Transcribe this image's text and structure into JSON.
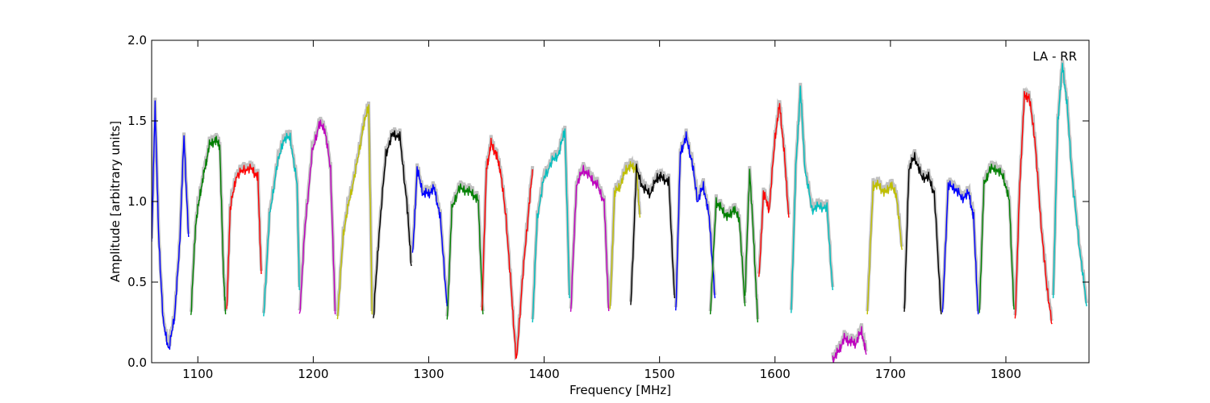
{
  "chart_data": {
    "type": "line",
    "xlabel": "Frequency [MHz]",
    "ylabel": "Amplitude [arbitrary units]",
    "annotation": "LA - RR",
    "xlim": [
      1060,
      1872
    ],
    "ylim": [
      0.0,
      2.0
    ],
    "xticks": [
      1100,
      1200,
      1300,
      1400,
      1500,
      1600,
      1700,
      1800
    ],
    "xtick_labels": [
      "1100",
      "1200",
      "1300",
      "1400",
      "1500",
      "1600",
      "1700",
      "1800"
    ],
    "yticks": [
      0.0,
      0.5,
      1.0,
      1.5,
      2.0
    ],
    "ytick_labels": [
      "0.0",
      "0.5",
      "1.0",
      "1.5",
      "2.0"
    ],
    "grid": false,
    "background_color": "#c0c0c0",
    "segments": [
      {
        "color": "#0000ff",
        "x": [
          1060,
          1063,
          1066,
          1070,
          1075,
          1080,
          1084,
          1088,
          1092
        ],
        "y": [
          0.75,
          1.6,
          0.8,
          0.25,
          0.08,
          0.3,
          0.7,
          1.4,
          0.78
        ]
      },
      {
        "color": "#008000",
        "x": [
          1094,
          1098,
          1102,
          1106,
          1110,
          1115,
          1119,
          1122,
          1124
        ],
        "y": [
          0.28,
          0.85,
          1.05,
          1.2,
          1.35,
          1.38,
          1.35,
          0.6,
          0.3
        ]
      },
      {
        "color": "#ff0000",
        "x": [
          1125,
          1128,
          1133,
          1140,
          1147,
          1152,
          1155
        ],
        "y": [
          0.3,
          0.95,
          1.15,
          1.2,
          1.2,
          1.15,
          0.55
        ]
      },
      {
        "color": "#00bfbf",
        "x": [
          1157,
          1162,
          1168,
          1174,
          1180,
          1186,
          1188
        ],
        "y": [
          0.28,
          0.9,
          1.2,
          1.38,
          1.4,
          1.1,
          0.45
        ]
      },
      {
        "color": "#bf00bf",
        "x": [
          1188,
          1193,
          1199,
          1205,
          1210,
          1215,
          1219
        ],
        "y": [
          0.28,
          0.85,
          1.3,
          1.48,
          1.45,
          1.2,
          0.3
        ]
      },
      {
        "color": "#bfbf00",
        "x": [
          1221,
          1226,
          1231,
          1237,
          1243,
          1248,
          1251
        ],
        "y": [
          0.27,
          0.8,
          1.0,
          1.2,
          1.45,
          1.6,
          0.3
        ]
      },
      {
        "color": "#000000",
        "x": [
          1252,
          1257,
          1263,
          1269,
          1275,
          1281,
          1285
        ],
        "y": [
          0.26,
          0.8,
          1.3,
          1.42,
          1.4,
          1.0,
          0.6
        ]
      },
      {
        "color": "#0000ff",
        "x": [
          1286,
          1290,
          1295,
          1300,
          1305,
          1310,
          1316
        ],
        "y": [
          0.65,
          1.2,
          1.05,
          1.05,
          1.08,
          0.9,
          0.35
        ]
      },
      {
        "color": "#008000",
        "x": [
          1316,
          1320,
          1326,
          1332,
          1338,
          1343,
          1347
        ],
        "y": [
          0.26,
          0.95,
          1.08,
          1.07,
          1.05,
          1.0,
          0.3
        ]
      },
      {
        "color": "#ff0000",
        "x": [
          1346,
          1350,
          1354,
          1358,
          1362,
          1367,
          1372,
          1376,
          1381,
          1386,
          1390
        ],
        "y": [
          0.3,
          1.2,
          1.36,
          1.3,
          1.2,
          0.9,
          0.4,
          0.0,
          0.5,
          0.9,
          1.2
        ]
      },
      {
        "color": "#00bfbf",
        "x": [
          1390,
          1394,
          1400,
          1407,
          1413,
          1418,
          1422
        ],
        "y": [
          0.25,
          0.9,
          1.15,
          1.25,
          1.3,
          1.45,
          0.4
        ]
      },
      {
        "color": "#bf00bf",
        "x": [
          1423,
          1428,
          1434,
          1440,
          1446,
          1452,
          1456
        ],
        "y": [
          0.3,
          1.1,
          1.2,
          1.15,
          1.1,
          1.0,
          0.32
        ]
      },
      {
        "color": "#bfbf00",
        "x": [
          1457,
          1461,
          1466,
          1471,
          1476,
          1480,
          1483
        ],
        "y": [
          0.3,
          1.05,
          1.1,
          1.2,
          1.22,
          1.2,
          0.9
        ]
      },
      {
        "color": "#000000",
        "x": [
          1475,
          1480,
          1486,
          1492,
          1498,
          1502,
          1508,
          1513
        ],
        "y": [
          0.35,
          1.2,
          1.08,
          1.05,
          1.15,
          1.15,
          1.12,
          0.4
        ]
      },
      {
        "color": "#0000ff",
        "x": [
          1514,
          1518,
          1523,
          1528,
          1533,
          1538,
          1543,
          1548
        ],
        "y": [
          0.3,
          1.3,
          1.4,
          1.25,
          1.0,
          1.1,
          0.9,
          0.4
        ]
      },
      {
        "color": "#008000",
        "x": [
          1544,
          1549,
          1554,
          1559,
          1564,
          1569,
          1574
        ],
        "y": [
          0.3,
          1.0,
          0.95,
          0.9,
          0.95,
          0.9,
          0.35
        ]
      },
      {
        "color": "#008000",
        "x": [
          1574,
          1578,
          1582,
          1585
        ],
        "y": [
          0.4,
          1.2,
          0.7,
          0.25
        ]
      },
      {
        "color": "#ff0000",
        "x": [
          1586,
          1590,
          1595,
          1600,
          1604,
          1608,
          1612
        ],
        "y": [
          0.5,
          1.05,
          0.95,
          1.4,
          1.6,
          1.3,
          0.9
        ]
      },
      {
        "color": "#00bfbf",
        "x": [
          1614,
          1618,
          1622,
          1626,
          1632,
          1638,
          1645,
          1650
        ],
        "y": [
          0.3,
          1.2,
          1.7,
          1.2,
          0.95,
          0.97,
          0.96,
          0.45
        ]
      },
      {
        "color": "#bf00bf",
        "x": [
          1650,
          1655,
          1660,
          1665,
          1670,
          1675,
          1679
        ],
        "y": [
          0.02,
          0.07,
          0.15,
          0.13,
          0.12,
          0.2,
          0.05
        ]
      },
      {
        "color": "#bfbf00",
        "x": [
          1680,
          1685,
          1690,
          1695,
          1700,
          1705,
          1710
        ],
        "y": [
          0.3,
          1.1,
          1.1,
          1.05,
          1.1,
          1.05,
          0.7
        ]
      },
      {
        "color": "#000000",
        "x": [
          1712,
          1716,
          1721,
          1727,
          1733,
          1738,
          1744
        ],
        "y": [
          0.3,
          1.2,
          1.28,
          1.15,
          1.15,
          1.05,
          0.3
        ]
      },
      {
        "color": "#0000ff",
        "x": [
          1745,
          1750,
          1756,
          1762,
          1768,
          1772,
          1776
        ],
        "y": [
          0.28,
          1.1,
          1.08,
          1.02,
          1.05,
          0.9,
          0.3
        ]
      },
      {
        "color": "#008000",
        "x": [
          1777,
          1781,
          1786,
          1792,
          1798,
          1803,
          1807
        ],
        "y": [
          0.3,
          1.1,
          1.2,
          1.2,
          1.15,
          1.0,
          0.33
        ]
      },
      {
        "color": "#ff0000",
        "x": [
          1808,
          1812,
          1816,
          1820,
          1825,
          1830,
          1835,
          1840
        ],
        "y": [
          0.25,
          1.1,
          1.65,
          1.65,
          1.4,
          0.9,
          0.5,
          0.24
        ]
      },
      {
        "color": "#00bfbf",
        "x": [
          1841,
          1845,
          1849,
          1853,
          1858,
          1864,
          1870
        ],
        "y": [
          0.4,
          1.5,
          1.85,
          1.6,
          1.1,
          0.7,
          0.35
        ]
      }
    ]
  }
}
